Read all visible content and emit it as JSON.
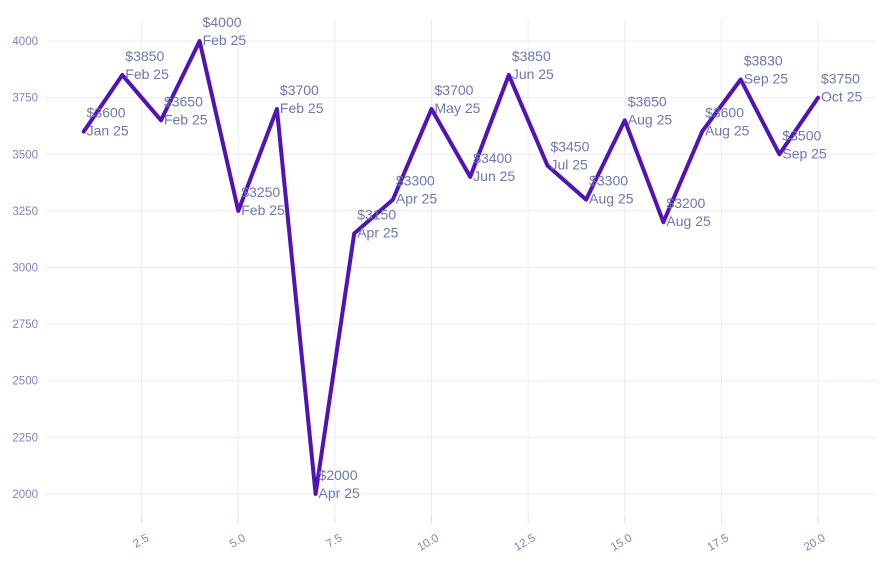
{
  "chart_data": {
    "type": "line",
    "title": "",
    "xlabel": "",
    "ylabel": "",
    "legend": "none",
    "grid": true,
    "x": [
      1,
      2,
      3,
      4,
      5,
      6,
      7,
      8,
      9,
      10,
      11,
      12,
      13,
      14,
      15,
      16,
      17,
      18,
      19,
      20
    ],
    "values": [
      3600,
      3850,
      3650,
      4000,
      3250,
      3700,
      2000,
      3150,
      3300,
      3700,
      3400,
      3850,
      3450,
      3300,
      3650,
      3200,
      3600,
      3830,
      3500,
      3750
    ],
    "point_prices": [
      "$3600",
      "$3850",
      "$3650",
      "$4000",
      "$3250",
      "$3700",
      "$2000",
      "$3150",
      "$3300",
      "$3700",
      "$3400",
      "$3850",
      "$3450",
      "$3300",
      "$3650",
      "$3200",
      "$3600",
      "$3830",
      "$3500",
      "$3750"
    ],
    "point_months": [
      "Jan 25",
      "Feb 25",
      "Feb 25",
      "Feb 25",
      "Feb 25",
      "Feb 25",
      "Apr 25",
      "Apr 25",
      "Apr 25",
      "May 25",
      "Jun 25",
      "Jun 25",
      "Jul 25",
      "Aug 25",
      "Aug 25",
      "Aug 25",
      "Aug 25",
      "Sep 25",
      "Sep 25",
      "Oct 25"
    ],
    "x_ticks": {
      "values": [
        2.5,
        5,
        7.5,
        10,
        12.5,
        15,
        17.5,
        20
      ],
      "labels": [
        "2.5",
        "5.0",
        "7.5",
        "10.0",
        "12.5",
        "15.0",
        "17.5",
        "20.0"
      ],
      "label_rotation_deg": -30
    },
    "y_ticks": {
      "values": [
        2000,
        2250,
        2500,
        2750,
        3000,
        3250,
        3500,
        3750,
        4000
      ],
      "labels": [
        "2000",
        "2250",
        "2500",
        "2750",
        "3000",
        "3250",
        "3500",
        "3750",
        "4000"
      ]
    },
    "xlim": [
      0,
      21.5
    ],
    "ylim": [
      1898,
      4093
    ],
    "colors": {
      "line": "#5113b8",
      "point_label": "#6e77ae",
      "axis_tick": "#7f84bb",
      "grid": "#ebebf5",
      "tick_mark": "#d9d9ea",
      "background": "#ffffff"
    }
  }
}
